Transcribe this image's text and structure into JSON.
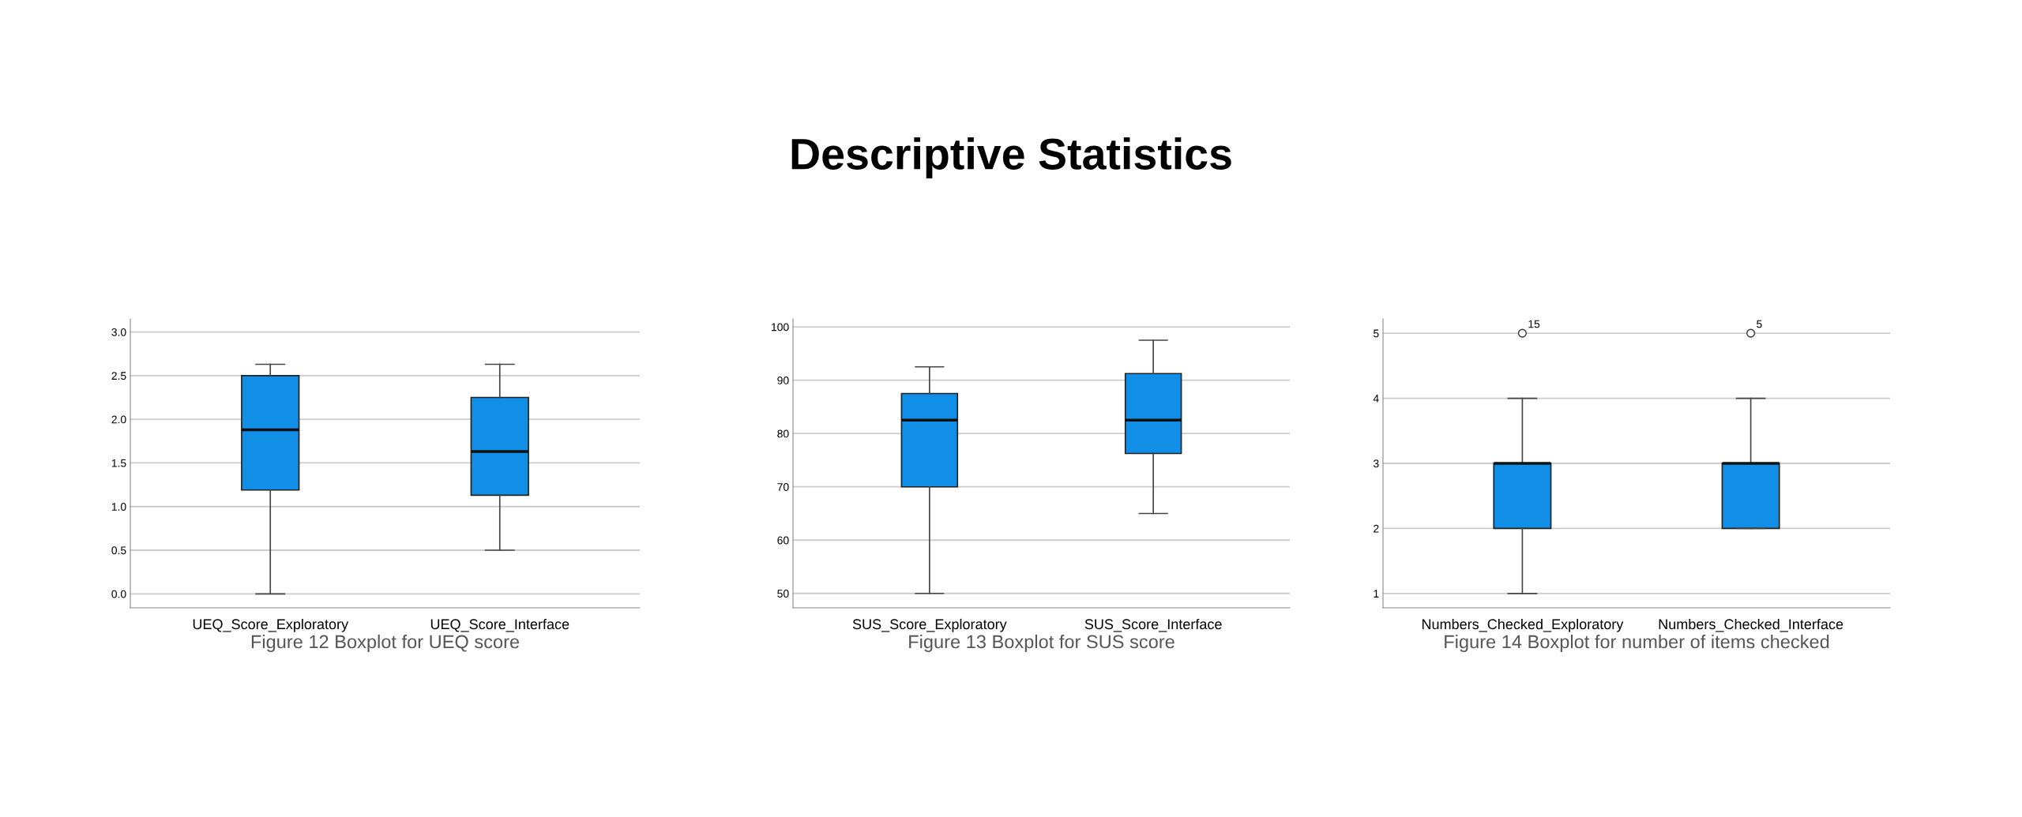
{
  "chart_data": [
    {
      "type": "box",
      "categories": [
        "UEQ_Score_Exploratory",
        "UEQ_Score_Interface"
      ],
      "color": "#118ee6",
      "boxes": [
        {
          "low": 0,
          "q1": 1.19,
          "median": 1.88,
          "q3": 2.5,
          "high": 2.63
        },
        {
          "low": 0.5,
          "q1": 1.13,
          "median": 1.63,
          "q3": 2.25,
          "high": 2.63
        }
      ],
      "ylim": [
        -0.16,
        3.15
      ],
      "yticks": [
        {
          "value": 0,
          "label": "0.0"
        },
        0.5,
        {
          "value": 1,
          "label": "1.0"
        },
        1.5,
        {
          "value": 2,
          "label": "2.0"
        },
        2.5,
        {
          "value": 3,
          "label": "3.0"
        }
      ],
      "grid": "y",
      "annotations": [
        "Figure 12 Boxplot for UEQ score"
      ]
    },
    {
      "type": "box",
      "title": "Descriptive Statistics",
      "categories": [
        "SUS_Score_Exploratory",
        "SUS_Score_Interface"
      ],
      "color": "#118ee6",
      "boxes": [
        {
          "low": 50,
          "q1": 70,
          "median": 82.5,
          "q3": 87.5,
          "high": 92.5
        },
        {
          "low": 65,
          "q1": 76.25,
          "median": 82.5,
          "q3": 91.25,
          "high": 97.5
        }
      ],
      "ylim": [
        47.3,
        101.5
      ],
      "yticks": [
        50,
        60,
        70,
        80,
        90,
        100
      ],
      "grid": "y",
      "annotations": [
        "Figure 13 Boxplot for SUS score"
      ]
    },
    {
      "type": "box",
      "categories": [
        "Numbers_Checked_Exploratory",
        "Numbers_Checked_Interface"
      ],
      "color": "#118ee6",
      "boxes": [
        {
          "low": 1,
          "q1": 2,
          "median": 3,
          "q3": 3,
          "high": 4,
          "outliers": [
            5
          ]
        },
        {
          "low": 2,
          "q1": 2,
          "median": 3,
          "q3": 3,
          "high": 4,
          "outliers": [
            5
          ]
        }
      ],
      "ylim": [
        0.78,
        5.22
      ],
      "yticks": [
        1,
        2,
        3,
        4,
        5
      ],
      "grid": "y",
      "annotations": [
        "15",
        "5",
        "Figure 14 Boxplot for number of items checked"
      ]
    }
  ]
}
